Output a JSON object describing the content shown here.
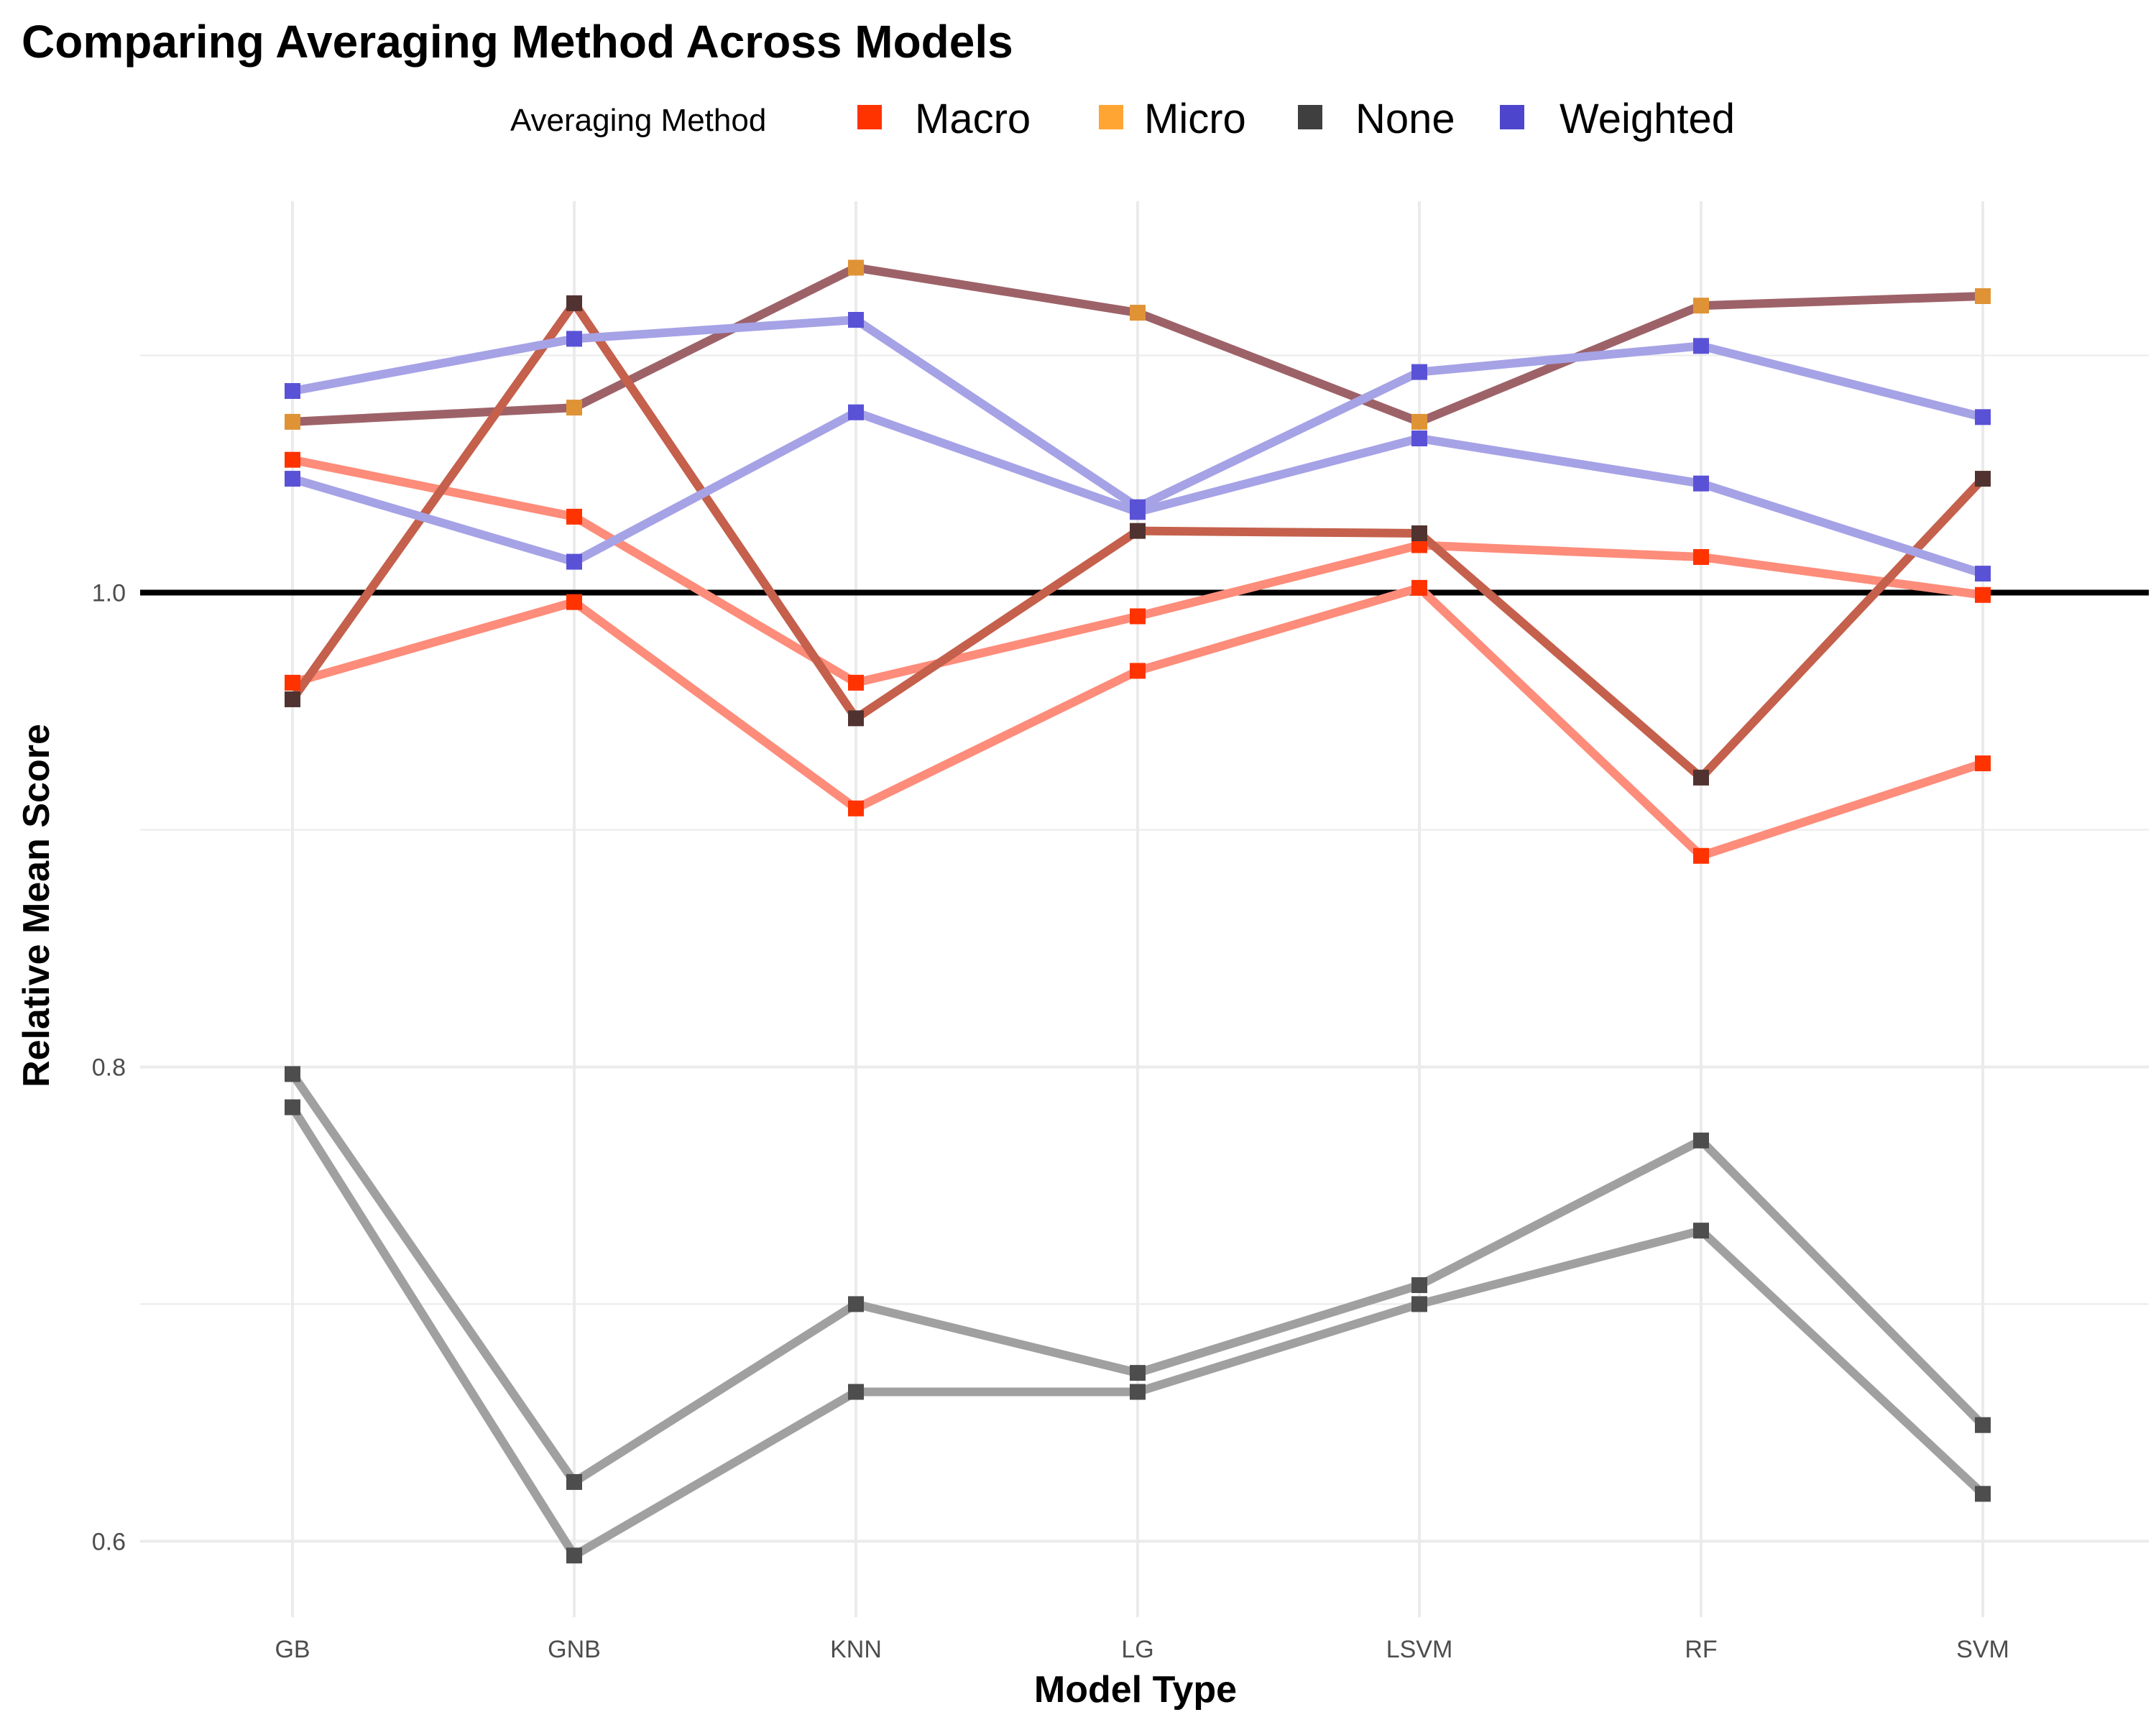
{
  "chart_data": {
    "type": "line",
    "title": "Comparing Averaging Method Across Models",
    "xlabel": "Model Type",
    "ylabel": "Relative Mean Score",
    "categories": [
      "GB",
      "GNB",
      "KNN",
      "LG",
      "LSVM",
      "RF",
      "SVM"
    ],
    "ylim": [
      0.568,
      1.165
    ],
    "yticks": [
      0.6,
      0.8,
      1.0
    ],
    "ytick_labels": [
      "0.6",
      "0.8",
      "1.0"
    ],
    "grid": true,
    "reference_line": 1.0,
    "legend": {
      "title": "Averaging Method",
      "position": "top",
      "items": [
        {
          "label": "Macro",
          "color": "#ff3300"
        },
        {
          "label": "Micro",
          "color": "#ffa533"
        },
        {
          "label": "None",
          "color": "#3f3f3f"
        },
        {
          "label": "Weighted",
          "color": "#4d46cc"
        }
      ]
    },
    "series": [
      {
        "group": "Macro",
        "color": "#ff3300",
        "line_color": "#fd8c7a",
        "marker_color": "#ff3300",
        "values": [
          1.056,
          1.032,
          0.962,
          0.99,
          1.02,
          1.015,
          0.999
        ]
      },
      {
        "group": "Macro",
        "color": "#ff3300",
        "line_color": "#fd8c7a",
        "marker_color": "#ff3300",
        "values": [
          0.962,
          0.996,
          0.909,
          0.967,
          1.002,
          0.889,
          0.928
        ]
      },
      {
        "group": "Micro",
        "color": "#ffa533",
        "line_color": "#9d6268",
        "marker_color": "#df9335",
        "values": [
          1.072,
          1.078,
          1.137,
          1.118,
          1.072,
          1.121,
          1.125
        ]
      },
      {
        "group": "None",
        "color": "#3f3f3f",
        "line_color": "#c4604c",
        "marker_color": "#503330",
        "values": [
          0.955,
          1.122,
          0.947,
          1.026,
          1.025,
          0.922,
          1.048
        ]
      },
      {
        "group": "None",
        "color": "#3f3f3f",
        "line_color": "#a0a0a0",
        "marker_color": "#4d4d4d",
        "values": [
          0.797,
          0.625,
          0.7,
          0.671,
          0.708,
          0.769,
          0.649
        ]
      },
      {
        "group": "None",
        "color": "#3f3f3f",
        "line_color": "#a0a0a0",
        "marker_color": "#4d4d4d",
        "values": [
          0.783,
          0.594,
          0.663,
          0.663,
          0.7,
          0.731,
          0.62
        ]
      },
      {
        "group": "Weighted",
        "color": "#4d46cc",
        "line_color": "#a6a2e6",
        "marker_color": "#5a52d6",
        "values": [
          1.085,
          1.107,
          1.115,
          1.036,
          1.093,
          1.104,
          1.074
        ]
      },
      {
        "group": "Weighted",
        "color": "#4d46cc",
        "line_color": "#a6a2e6",
        "marker_color": "#5a52d6",
        "values": [
          1.048,
          1.013,
          1.076,
          1.034,
          1.065,
          1.046,
          1.008
        ]
      }
    ]
  }
}
